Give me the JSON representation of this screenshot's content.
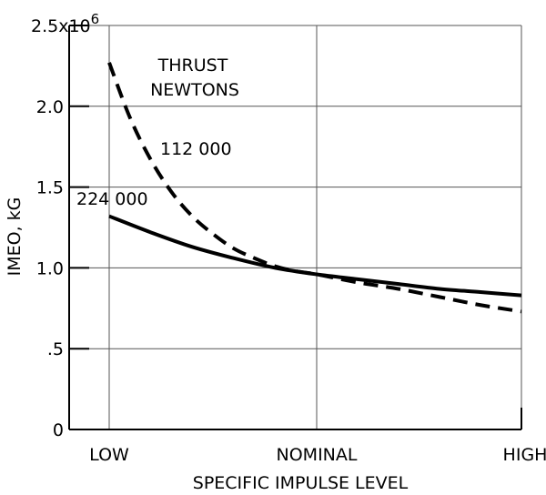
{
  "chart_data": {
    "type": "line",
    "title": "",
    "xlabel": "SPECIFIC IMPULSE LEVEL",
    "ylabel": "IMEO, kG",
    "x_categories": [
      "LOW",
      "NOMINAL",
      "HIGH"
    ],
    "y_ticks": [
      {
        "value": 0,
        "label": "0"
      },
      {
        "value": 0.5,
        "label": ".5"
      },
      {
        "value": 1.0,
        "label": "1.0"
      },
      {
        "value": 1.5,
        "label": "1.5"
      },
      {
        "value": 2.0,
        "label": "2.0"
      },
      {
        "value": 2.5,
        "label": "2.5x10"
      }
    ],
    "y_multiplier_exponent": "6",
    "ylim": [
      0,
      2.5
    ],
    "xlim": [
      0,
      2
    ],
    "grid": true,
    "legend_title": [
      "THRUST",
      "NEWTONS"
    ],
    "series": [
      {
        "name": "112 000",
        "style": "dashed",
        "points": [
          [
            0,
            2.27
          ],
          [
            0.1,
            1.93
          ],
          [
            0.2,
            1.67
          ],
          [
            0.3,
            1.47
          ],
          [
            0.4,
            1.32
          ],
          [
            0.5,
            1.21
          ],
          [
            0.6,
            1.12
          ],
          [
            0.7,
            1.06
          ],
          [
            0.8,
            1.01
          ],
          [
            0.9,
            0.98
          ],
          [
            1.0,
            0.96
          ],
          [
            1.2,
            0.91
          ],
          [
            1.4,
            0.87
          ],
          [
            1.6,
            0.82
          ],
          [
            1.8,
            0.77
          ],
          [
            2.0,
            0.73
          ]
        ]
      },
      {
        "name": "224 000",
        "style": "solid",
        "points": [
          [
            0,
            1.32
          ],
          [
            0.2,
            1.22
          ],
          [
            0.4,
            1.13
          ],
          [
            0.6,
            1.06
          ],
          [
            0.8,
            1.0
          ],
          [
            1.0,
            0.96
          ],
          [
            1.2,
            0.93
          ],
          [
            1.4,
            0.9
          ],
          [
            1.6,
            0.87
          ],
          [
            1.8,
            0.85
          ],
          [
            2.0,
            0.83
          ]
        ]
      }
    ]
  }
}
